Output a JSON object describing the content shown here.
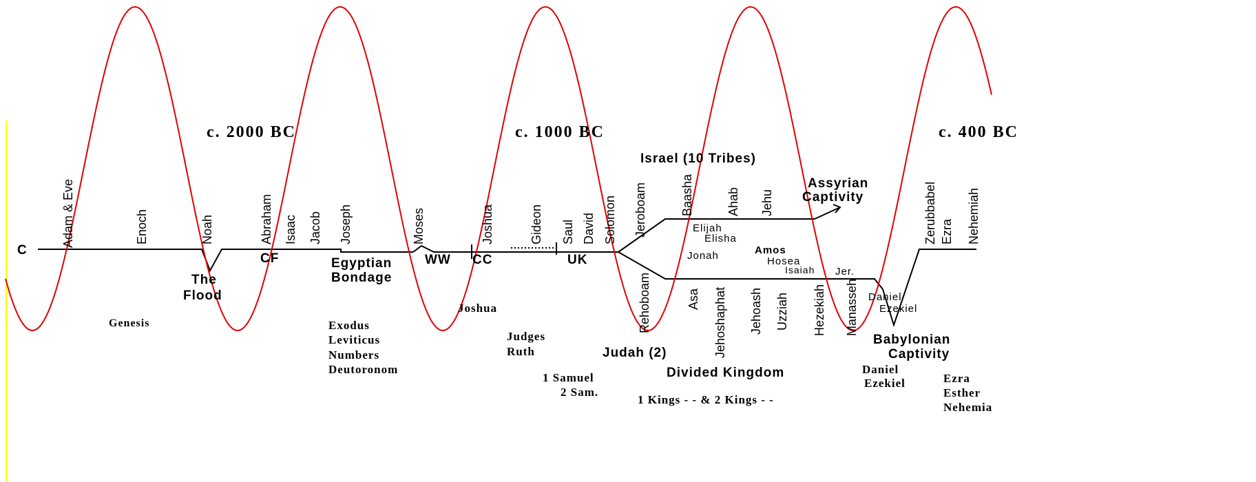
{
  "eras": {
    "e1": "c. 2000 BC",
    "e2": "c. 1000 BC",
    "e3": "c. 400 BC"
  },
  "timeline_start": "C",
  "people": {
    "adam_eve": "Adam & Eve",
    "enoch": "Enoch",
    "noah": "Noah",
    "abraham": "Abraham",
    "isaac": "Isaac",
    "jacob": "Jacob",
    "joseph": "Joseph",
    "moses": "Moses",
    "joshua": "Joshua",
    "gideon": "Gideon",
    "saul": "Saul",
    "david": "David",
    "solomon": "Solomon",
    "jeroboam": "Jeroboam",
    "baasha": "Baasha",
    "ahab": "Ahab",
    "jehu": "Jehu",
    "zerubbabel": "Zerubbabel",
    "ezra": "Ezra",
    "nehemiah": "Nehemiah",
    "rehoboam": "Rehoboam",
    "asa": "Asa",
    "jehoshaphat": "Jehoshaphat",
    "jehoash": "Jehoash",
    "uzziah": "Uzziah",
    "hezekiah": "Hezekiah",
    "manasseh": "Manasseh"
  },
  "events": {
    "cf": "CF",
    "egyptian": "Egyptian",
    "bondage": "Bondage",
    "ww": "WW",
    "cc": "CC",
    "uk": "UK",
    "the": "The",
    "flood": "Flood",
    "israel": "Israel (10 Tribes)",
    "assyrian": "Assyrian",
    "captivity_a": "Captivity",
    "elijah": "Elijah",
    "elisha": "Elisha",
    "amos": "Amos",
    "jonah": "Jonah",
    "hosea": "Hosea",
    "isaiah": "Isaiah",
    "jer": "Jer.",
    "daniel_p": "Daniel",
    "ezekiel_p": "Ezekiel",
    "judah": "Judah (2)",
    "divided": "Divided Kingdom",
    "babylonian": "Babylonian",
    "captivity_b": "Captivity"
  },
  "books": {
    "genesis": "Genesis",
    "exodus": "Exodus",
    "leviticus": "Leviticus",
    "numbers": "Numbers",
    "deuteronomy": "Deutoronom",
    "joshua": "Joshua",
    "judges": "Judges",
    "ruth": "Ruth",
    "samuel1": "1 Samuel",
    "samuel2": "2 Sam.",
    "kings": "1 Kings - - & 2 Kings - -",
    "daniel": "Daniel",
    "ezekiel": "Ezekiel",
    "ezra": "Ezra",
    "esther": "Esther",
    "nehemia": "Nehemia"
  },
  "colors": {
    "wave": "#e00000",
    "ink": "#000000",
    "edge": "#ffff00"
  }
}
